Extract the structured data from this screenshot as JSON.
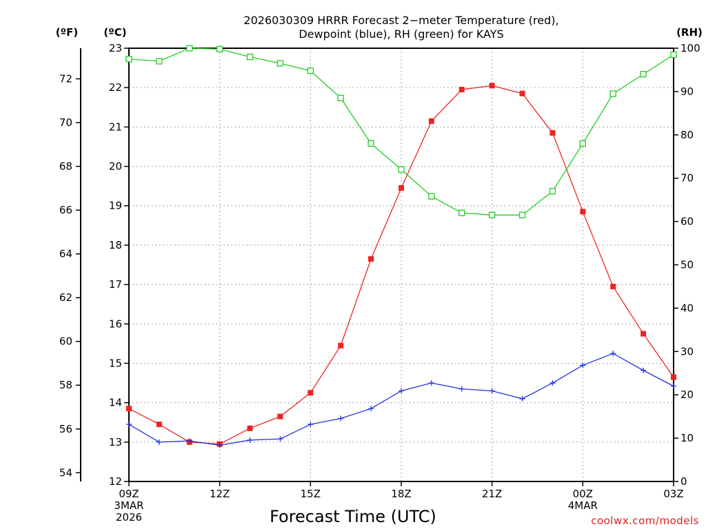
{
  "chart_data": {
    "type": "line",
    "title_line1": "2026030309 HRRR Forecast 2−meter Temperature (red),",
    "title_line2": "Dewpoint (blue), RH (green) for KAYS",
    "xlabel": "Forecast Time (UTC)",
    "credit": "coolwx.com/models",
    "units": {
      "fahrenheit": "(ºF)",
      "celsius": "(ºC)",
      "rh": "(RH)"
    },
    "x_hours": [
      0,
      1,
      2,
      3,
      4,
      5,
      6,
      7,
      8,
      9,
      10,
      11,
      12,
      13,
      14,
      15,
      16,
      17,
      18
    ],
    "xlim": [
      0,
      18
    ],
    "x_ticks": [
      {
        "hour": 0,
        "label": "09Z",
        "sub1": "3MAR",
        "sub2": "2026"
      },
      {
        "hour": 3,
        "label": "12Z",
        "sub1": "",
        "sub2": ""
      },
      {
        "hour": 6,
        "label": "15Z",
        "sub1": "",
        "sub2": ""
      },
      {
        "hour": 9,
        "label": "18Z",
        "sub1": "",
        "sub2": ""
      },
      {
        "hour": 12,
        "label": "21Z",
        "sub1": "",
        "sub2": ""
      },
      {
        "hour": 15,
        "label": "00Z",
        "sub1": "4MAR",
        "sub2": ""
      },
      {
        "hour": 18,
        "label": "03Z",
        "sub1": "",
        "sub2": ""
      }
    ],
    "celsius_ylim": [
      12,
      23
    ],
    "celsius_ticks": [
      12,
      13,
      14,
      15,
      16,
      17,
      18,
      19,
      20,
      21,
      22,
      23
    ],
    "fahrenheit_ticks": [
      54,
      56,
      58,
      60,
      62,
      64,
      66,
      68,
      70,
      72
    ],
    "rh_ylim": [
      0,
      100
    ],
    "rh_ticks": [
      0,
      10,
      20,
      30,
      40,
      50,
      60,
      70,
      80,
      90,
      100
    ],
    "series": [
      {
        "name": "Temperature",
        "axis": "celsius",
        "color": "#ee2222",
        "marker": "filled-square",
        "values": [
          13.85,
          13.45,
          13.0,
          12.95,
          13.35,
          13.65,
          14.25,
          15.45,
          17.65,
          19.45,
          21.15,
          21.95,
          22.05,
          21.85,
          20.85,
          18.85,
          16.95,
          15.75,
          14.65
        ]
      },
      {
        "name": "Dewpoint",
        "axis": "celsius",
        "color": "#2233dd",
        "marker": "plus",
        "values": [
          13.45,
          13.0,
          13.03,
          12.92,
          13.05,
          13.08,
          13.45,
          13.6,
          13.85,
          14.3,
          14.5,
          14.35,
          14.3,
          14.1,
          14.5,
          14.95,
          15.25,
          14.82,
          14.42
        ]
      },
      {
        "name": "RH",
        "axis": "rh",
        "color": "#22cc22",
        "marker": "open-square",
        "values": [
          97.5,
          97.0,
          100.0,
          99.8,
          98.0,
          96.5,
          94.8,
          88.5,
          78.0,
          72.0,
          65.8,
          62.0,
          61.5,
          61.5,
          67.0,
          78.0,
          89.5,
          94.0,
          98.5
        ]
      }
    ]
  }
}
